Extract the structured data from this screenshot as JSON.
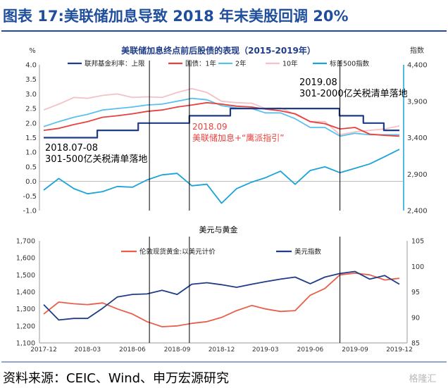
{
  "header": {
    "title": "图表 17:美联储加息导致 2018 年末美股回调 20%",
    "title_color": "#1f4e9c",
    "rule_color": "#1f4e9c"
  },
  "source": "资料来源：CEIC、Wind、申万宏源研究",
  "watermark": "格隆汇",
  "chart_data": [
    {
      "type": "line",
      "title": "美联储加息终点前后股债的表现（2015-2019年）",
      "ylabel_left": "%",
      "ylabel_right": "指数",
      "ylim_left": [
        -1.0,
        4.0
      ],
      "yticks_left": [
        "4.0",
        "3.5",
        "3.0",
        "2.5",
        "2.0",
        "1.5",
        "1.0",
        "0.5",
        "0.0",
        "-0.5",
        "-1.0"
      ],
      "ylim_right": [
        2400,
        4400
      ],
      "yticks_right": [
        "4,400",
        "3,900",
        "3,400",
        "2,900",
        "2,400"
      ],
      "x_start": "2017-12",
      "x_end": "2019-12",
      "series": [
        {
          "name": "联邦基金利率：上限",
          "axis": "left",
          "color": "#1f3c88",
          "step": true,
          "dates": [
            "2017-12",
            "2018-03-21",
            "2018-06-13",
            "2018-09-26",
            "2018-12-19",
            "2019-07-31",
            "2019-09-18",
            "2019-10-30",
            "2019-12"
          ],
          "values": [
            1.5,
            1.75,
            2.0,
            2.25,
            2.5,
            2.25,
            2.0,
            1.75,
            1.75
          ]
        },
        {
          "name": "国债：1年",
          "axis": "left",
          "color": "#e8413c",
          "dates": [
            "2017-12",
            "2018-01",
            "2018-02",
            "2018-03",
            "2018-04",
            "2018-05",
            "2018-06",
            "2018-07",
            "2018-08",
            "2018-09",
            "2018-10",
            "2018-11",
            "2018-12",
            "2019-01",
            "2019-02",
            "2019-03",
            "2019-04",
            "2019-05",
            "2019-06",
            "2019-07",
            "2019-08",
            "2019-09",
            "2019-10",
            "2019-11",
            "2019-12"
          ],
          "values": [
            1.75,
            1.82,
            1.95,
            2.05,
            2.2,
            2.25,
            2.32,
            2.4,
            2.45,
            2.55,
            2.62,
            2.7,
            2.65,
            2.58,
            2.55,
            2.48,
            2.42,
            2.32,
            2.05,
            1.98,
            1.8,
            1.85,
            1.62,
            1.58,
            1.55
          ]
        },
        {
          "name": "2年",
          "axis": "left",
          "color": "#58c0ef",
          "dates": [
            "2017-12",
            "2018-01",
            "2018-02",
            "2018-03",
            "2018-04",
            "2018-05",
            "2018-06",
            "2018-07",
            "2018-08",
            "2018-09",
            "2018-10",
            "2018-11",
            "2018-12",
            "2019-01",
            "2019-02",
            "2019-03",
            "2019-04",
            "2019-05",
            "2019-06",
            "2019-07",
            "2019-08",
            "2019-09",
            "2019-10",
            "2019-11",
            "2019-12"
          ],
          "values": [
            1.88,
            2.05,
            2.2,
            2.3,
            2.45,
            2.5,
            2.55,
            2.62,
            2.65,
            2.75,
            2.85,
            2.8,
            2.6,
            2.52,
            2.5,
            2.35,
            2.35,
            2.15,
            1.85,
            1.85,
            1.55,
            1.65,
            1.6,
            1.6,
            1.6
          ]
        },
        {
          "name": "10年",
          "axis": "left",
          "color": "#f3c1c7",
          "dates": [
            "2017-12",
            "2018-01",
            "2018-02",
            "2018-03",
            "2018-04",
            "2018-05",
            "2018-06",
            "2018-07",
            "2018-08",
            "2018-09",
            "2018-10",
            "2018-11",
            "2018-12",
            "2019-01",
            "2019-02",
            "2019-03",
            "2019-04",
            "2019-05",
            "2019-06",
            "2019-07",
            "2019-08",
            "2019-09",
            "2019-10",
            "2019-11",
            "2019-12"
          ],
          "values": [
            2.45,
            2.65,
            2.88,
            2.85,
            2.95,
            3.0,
            2.88,
            2.9,
            2.88,
            3.05,
            3.18,
            3.05,
            2.75,
            2.7,
            2.68,
            2.5,
            2.52,
            2.3,
            2.05,
            2.05,
            1.6,
            1.7,
            1.75,
            1.8,
            1.9
          ]
        },
        {
          "name": "标普500指数",
          "axis": "right",
          "color": "#1aa3d9",
          "dates": [
            "2017-12",
            "2018-01",
            "2018-02",
            "2018-03",
            "2018-04",
            "2018-05",
            "2018-06",
            "2018-07",
            "2018-08",
            "2018-09",
            "2018-10",
            "2018-11",
            "2018-12",
            "2019-01",
            "2019-02",
            "2019-03",
            "2019-04",
            "2019-05",
            "2019-06",
            "2019-07",
            "2019-08",
            "2019-09",
            "2019-10",
            "2019-11",
            "2019-12"
          ],
          "values": [
            2680,
            2840,
            2700,
            2630,
            2660,
            2730,
            2720,
            2820,
            2890,
            2910,
            2740,
            2760,
            2500,
            2700,
            2790,
            2850,
            2940,
            2760,
            2950,
            3000,
            2920,
            2980,
            3040,
            3140,
            3240
          ]
        }
      ],
      "vlines": [
        "2018-07-06",
        "2018-09-26",
        "2019-08-01"
      ],
      "annotations": [
        {
          "text_lines": [
            "2018.07-08",
            "301-500亿关税清单落地"
          ],
          "color": "#000000"
        },
        {
          "text_lines": [
            "2018.09",
            "美联储加息+“鹰派指引”"
          ],
          "color": "#e8413c"
        },
        {
          "text_lines": [
            "2019.08",
            "301-2000亿关税清单落地"
          ],
          "color": "#000000"
        }
      ]
    },
    {
      "type": "line",
      "title": "美元与黄金",
      "ylim_left": [
        1100,
        1700
      ],
      "yticks_left": [
        "1,700",
        "1,600",
        "1,500",
        "1,400",
        "1,300",
        "1,200",
        "1,100"
      ],
      "ylim_right": [
        85,
        105
      ],
      "yticks_right": [
        "105",
        "100",
        "95",
        "90",
        "85"
      ],
      "x_ticks": [
        "2017-12",
        "2018-03",
        "2018-06",
        "2018-09",
        "2018-12",
        "2019-03",
        "2019-06",
        "2019-09",
        "2019-12"
      ],
      "series": [
        {
          "name": "伦敦现货黄金:以美元计价",
          "axis": "left",
          "color": "#e8604c",
          "dates": [
            "2017-12",
            "2018-01",
            "2018-02",
            "2018-03",
            "2018-04",
            "2018-05",
            "2018-06",
            "2018-07",
            "2018-08",
            "2018-09",
            "2018-10",
            "2018-11",
            "2018-12",
            "2019-01",
            "2019-02",
            "2019-03",
            "2019-04",
            "2019-05",
            "2019-06",
            "2019-07",
            "2019-08",
            "2019-09",
            "2019-10",
            "2019-11",
            "2019-12"
          ],
          "values": [
            1270,
            1340,
            1330,
            1325,
            1335,
            1300,
            1270,
            1225,
            1195,
            1200,
            1215,
            1225,
            1250,
            1290,
            1320,
            1300,
            1285,
            1290,
            1380,
            1420,
            1500,
            1510,
            1500,
            1470,
            1480
          ]
        },
        {
          "name": "美元指数",
          "axis": "right",
          "color": "#1f3c88",
          "dates": [
            "2017-12",
            "2018-01",
            "2018-02",
            "2018-03",
            "2018-04",
            "2018-05",
            "2018-06",
            "2018-07",
            "2018-08",
            "2018-09",
            "2018-10",
            "2018-11",
            "2018-12",
            "2019-01",
            "2019-02",
            "2019-03",
            "2019-04",
            "2019-05",
            "2019-06",
            "2019-07",
            "2019-08",
            "2019-09",
            "2019-10",
            "2019-11",
            "2019-12"
          ],
          "values": [
            92.5,
            89.5,
            89.8,
            89.8,
            91.8,
            94.0,
            94.5,
            94.6,
            95.3,
            94.5,
            96.5,
            96.8,
            96.4,
            95.9,
            96.5,
            97.0,
            97.5,
            97.9,
            96.6,
            97.9,
            98.6,
            99.0,
            97.5,
            98.2,
            96.5
          ]
        }
      ],
      "vlines": [
        "2018-07-06",
        "2018-09-26",
        "2019-08-01"
      ]
    }
  ]
}
